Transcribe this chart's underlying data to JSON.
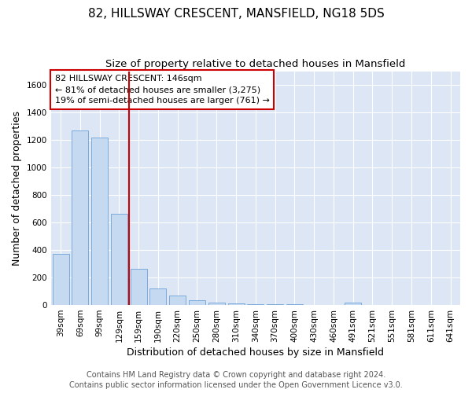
{
  "title": "82, HILLSWAY CRESCENT, MANSFIELD, NG18 5DS",
  "subtitle": "Size of property relative to detached houses in Mansfield",
  "xlabel": "Distribution of detached houses by size in Mansfield",
  "ylabel": "Number of detached properties",
  "footer_line1": "Contains HM Land Registry data © Crown copyright and database right 2024.",
  "footer_line2": "Contains public sector information licensed under the Open Government Licence v3.0.",
  "categories": [
    "39sqm",
    "69sqm",
    "99sqm",
    "129sqm",
    "159sqm",
    "190sqm",
    "220sqm",
    "250sqm",
    "280sqm",
    "310sqm",
    "340sqm",
    "370sqm",
    "400sqm",
    "430sqm",
    "460sqm",
    "491sqm",
    "521sqm",
    "551sqm",
    "581sqm",
    "611sqm",
    "641sqm"
  ],
  "values": [
    370,
    1270,
    1215,
    665,
    265,
    118,
    70,
    36,
    20,
    10,
    8,
    8,
    5,
    3,
    0,
    20,
    0,
    0,
    0,
    0,
    0
  ],
  "bar_color": "#c5d9f1",
  "bar_edge_color": "#7aaadc",
  "vline_x": 3.5,
  "vline_color": "#cc0000",
  "annotation_line1": "82 HILLSWAY CRESCENT: 146sqm",
  "annotation_line2": "← 81% of detached houses are smaller (3,275)",
  "annotation_line3": "19% of semi-detached houses are larger (761) →",
  "annotation_box_color": "#ffffff",
  "annotation_box_edge_color": "#cc0000",
  "ylim": [
    0,
    1700
  ],
  "background_color": "#ffffff",
  "plot_bg_color": "#dce6f5",
  "grid_color": "#ffffff",
  "title_fontsize": 11,
  "subtitle_fontsize": 9.5,
  "axis_label_fontsize": 9,
  "tick_fontsize": 7.5,
  "footer_fontsize": 7,
  "annotation_fontsize": 8
}
